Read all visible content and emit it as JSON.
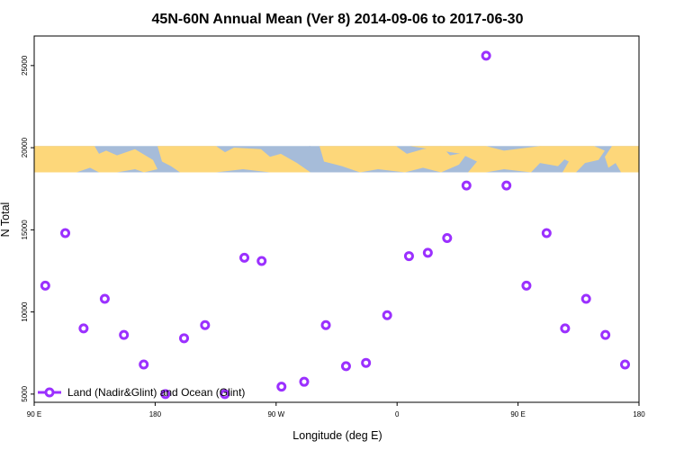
{
  "chart_data": {
    "type": "scatter",
    "title": "45N-60N Annual Mean (Ver 8)   2014-09-06 to 2017-06-30",
    "xlabel": "Longitude (deg E)",
    "ylabel": "N Total",
    "xlim": [
      90,
      450
    ],
    "ylim": [
      4500,
      26800
    ],
    "x_ticks": [
      {
        "value": 90,
        "label": "90 E"
      },
      {
        "value": 162,
        "label": "180"
      },
      {
        "value": 234,
        "label": "90 W"
      },
      {
        "value": 306,
        "label": "0"
      },
      {
        "value": 378,
        "label": "90 E"
      },
      {
        "value": 450,
        "label": "180"
      }
    ],
    "y_ticks": [
      {
        "value": 5000,
        "label": "5000"
      },
      {
        "value": 10000,
        "label": "10000"
      },
      {
        "value": 15000,
        "label": "15000"
      },
      {
        "value": 20000,
        "label": "20000"
      },
      {
        "value": 25000,
        "label": "25000"
      }
    ],
    "map_band": {
      "y_from": 18500,
      "y_to": 20100
    },
    "series": [
      {
        "name": "Land (Nadir&Glint) and Ocean (Glint)",
        "color": "#9b30ff",
        "points": [
          {
            "x": 96.6,
            "y": 11600
          },
          {
            "x": 108.5,
            "y": 14800
          },
          {
            "x": 119.4,
            "y": 9000
          },
          {
            "x": 132.0,
            "y": 10800
          },
          {
            "x": 143.4,
            "y": 8600
          },
          {
            "x": 155.2,
            "y": 6800
          },
          {
            "x": 168.1,
            "y": 5000
          },
          {
            "x": 179.2,
            "y": 8400
          },
          {
            "x": 191.7,
            "y": 9200
          },
          {
            "x": 203.5,
            "y": 5000
          },
          {
            "x": 215.1,
            "y": 13300
          },
          {
            "x": 225.4,
            "y": 13100
          },
          {
            "x": 237.2,
            "y": 5450
          },
          {
            "x": 250.7,
            "y": 5750
          },
          {
            "x": 263.6,
            "y": 9200
          },
          {
            "x": 275.6,
            "y": 6700
          },
          {
            "x": 287.5,
            "y": 6900
          },
          {
            "x": 300.1,
            "y": 9800
          },
          {
            "x": 313.1,
            "y": 13400
          },
          {
            "x": 324.3,
            "y": 13600
          },
          {
            "x": 335.8,
            "y": 14500
          },
          {
            "x": 347.3,
            "y": 17700
          },
          {
            "x": 359.0,
            "y": 25600
          },
          {
            "x": 371.1,
            "y": 17700
          },
          {
            "x": 383.0,
            "y": 11600
          },
          {
            "x": 395.0,
            "y": 14800
          },
          {
            "x": 406.0,
            "y": 9000
          },
          {
            "x": 418.5,
            "y": 10800
          },
          {
            "x": 430.0,
            "y": 8600
          },
          {
            "x": 441.7,
            "y": 6800
          }
        ]
      }
    ],
    "legend_position": "bottom-left"
  }
}
